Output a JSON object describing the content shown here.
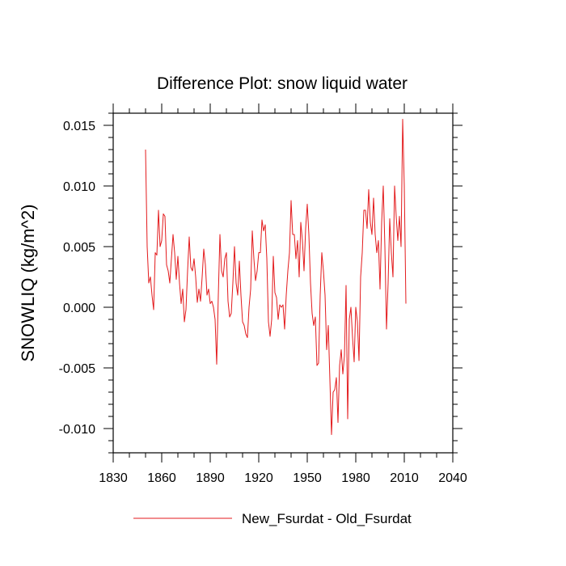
{
  "chart_data": {
    "type": "line",
    "title": "Difference Plot: snow liquid water",
    "xlabel": "",
    "ylabel": "SNOWLIQ  (kg/m^2)",
    "xlim": [
      1830,
      2040
    ],
    "ylim": [
      -0.012,
      0.016
    ],
    "x_major_ticks": [
      1830,
      1860,
      1890,
      1920,
      1950,
      1980,
      2010,
      2040
    ],
    "x_tick_labels": [
      "1830",
      "1860",
      "1890",
      "1920",
      "1950",
      "1980",
      "2010",
      "2040"
    ],
    "x_minor_step": 10,
    "y_major_ticks": [
      -0.01,
      -0.005,
      0.0,
      0.005,
      0.01,
      0.015
    ],
    "y_tick_labels": [
      "-0.010",
      "-0.005",
      "0.000",
      "0.005",
      "0.010",
      "0.015"
    ],
    "y_minor_step": 0.001,
    "grid": false,
    "legend_position": "bottom-center",
    "series": [
      {
        "name": "New_Fsurdat - Old_Fsurdat",
        "color": "#e31a1c",
        "x_start": 1850,
        "x_step": 1,
        "values": [
          0.013,
          0.005,
          0.002,
          0.0025,
          0.001,
          -0.0002,
          0.0045,
          0.0043,
          0.008,
          0.005,
          0.0055,
          0.0077,
          0.0075,
          0.0035,
          0.003,
          0.002,
          0.004,
          0.006,
          0.0045,
          0.0023,
          0.0042,
          0.002,
          0.0003,
          0.0015,
          -0.0012,
          -0.0002,
          0.003,
          0.0058,
          0.0033,
          0.003,
          0.004,
          0.0025,
          0.0004,
          0.0015,
          0.0005,
          0.0025,
          0.0048,
          0.0035,
          0.001,
          0.0015,
          0.0003,
          0.0005,
          0.0,
          -0.001,
          -0.0047,
          0.001,
          0.006,
          0.003,
          0.0025,
          0.004,
          0.0045,
          0.0005,
          -0.0008,
          -0.0005,
          0.002,
          0.005,
          0.002,
          0.001,
          0.0038,
          0.001,
          -0.0012,
          -0.0015,
          -0.0022,
          -0.0025,
          0.0,
          0.0015,
          0.0063,
          0.004,
          0.0022,
          0.003,
          0.0045,
          0.0045,
          0.0072,
          0.0063,
          0.0068,
          0.004,
          -0.0012,
          -0.0024,
          -0.001,
          0.0042,
          0.0012,
          0.0008,
          -0.001,
          0.0002,
          0.0,
          0.0002,
          -0.0018,
          0.001,
          0.003,
          0.0045,
          0.0088,
          0.006,
          0.006,
          0.004,
          0.0055,
          0.0025,
          0.007,
          0.0055,
          0.003,
          0.0065,
          0.0085,
          0.006,
          0.002,
          -0.0005,
          -0.0015,
          -0.0008,
          -0.0048,
          -0.0046,
          0.001,
          0.0045,
          0.003,
          0.001,
          -0.0035,
          -0.0015,
          -0.006,
          -0.0105,
          -0.007,
          -0.0068,
          -0.0058,
          -0.0095,
          -0.0048,
          -0.0035,
          -0.0055,
          -0.004,
          0.0018,
          -0.0092,
          -0.001,
          0.0,
          -0.0025,
          -0.0045,
          0.0,
          -0.0012,
          -0.0044,
          0.0025,
          0.0045,
          0.008,
          0.008,
          0.0065,
          0.0097,
          0.007,
          0.006,
          0.009,
          0.006,
          0.0045,
          0.0055,
          0.0015,
          0.007,
          0.01,
          0.005,
          -0.0018,
          0.002,
          0.0073,
          0.0045,
          0.0025,
          0.01,
          0.0075,
          0.0055,
          0.0075,
          0.005,
          0.0155,
          0.01,
          0.0003
        ]
      }
    ]
  }
}
